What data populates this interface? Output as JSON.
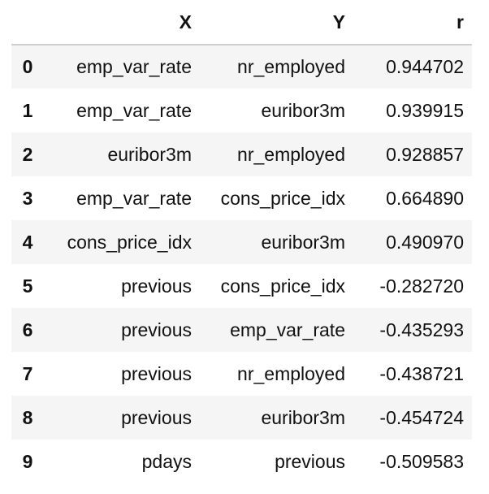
{
  "table": {
    "columns": [
      "",
      "X",
      "Y",
      "r"
    ],
    "rows": [
      {
        "index": "0",
        "x": "emp_var_rate",
        "y": "nr_employed",
        "r": "0.944702"
      },
      {
        "index": "1",
        "x": "emp_var_rate",
        "y": "euribor3m",
        "r": "0.939915"
      },
      {
        "index": "2",
        "x": "euribor3m",
        "y": "nr_employed",
        "r": "0.928857"
      },
      {
        "index": "3",
        "x": "emp_var_rate",
        "y": "cons_price_idx",
        "r": "0.664890"
      },
      {
        "index": "4",
        "x": "cons_price_idx",
        "y": "euribor3m",
        "r": "0.490970"
      },
      {
        "index": "5",
        "x": "previous",
        "y": "cons_price_idx",
        "r": "-0.282720"
      },
      {
        "index": "6",
        "x": "previous",
        "y": "emp_var_rate",
        "r": "-0.435293"
      },
      {
        "index": "7",
        "x": "previous",
        "y": "nr_employed",
        "r": "-0.438721"
      },
      {
        "index": "8",
        "x": "previous",
        "y": "euribor3m",
        "r": "-0.454724"
      },
      {
        "index": "9",
        "x": "pdays",
        "y": "previous",
        "r": "-0.509583"
      }
    ]
  }
}
